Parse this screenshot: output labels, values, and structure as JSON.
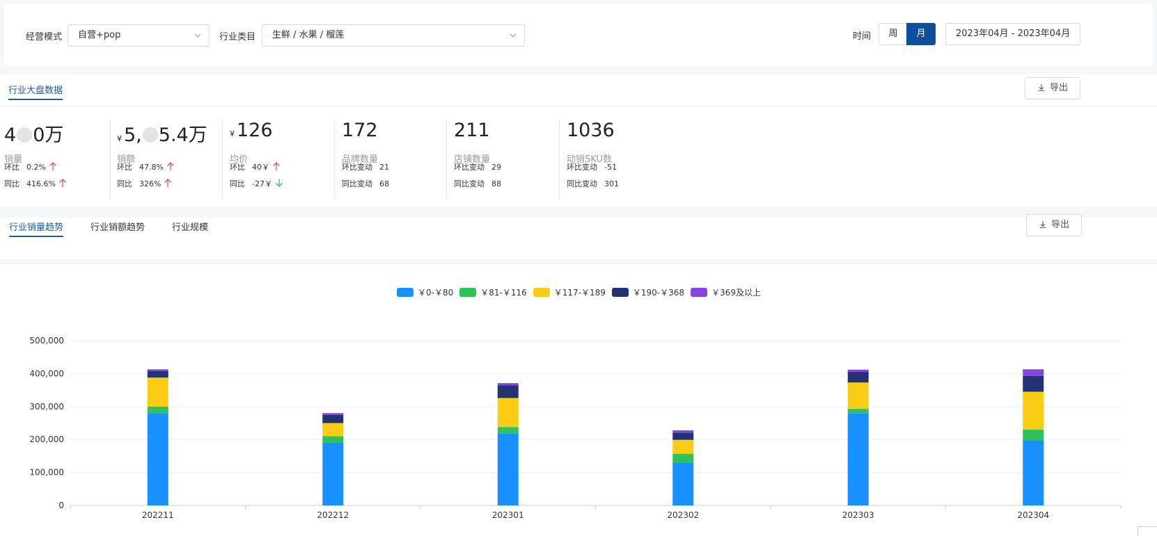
{
  "filters": {
    "mode_label": "经营模式",
    "mode_value": "自营+pop",
    "category_label": "行业类目",
    "category_value": "生鲜 / 水果 / 榴莲",
    "time_label": "时间",
    "week_label": "周",
    "month_label": "月",
    "date_range": "2023年04月 - 2023年04月"
  },
  "overview": {
    "tab_label": "行业大盘数据",
    "export_label": "导出",
    "metrics": [
      {
        "value_prefix": "4",
        "value_suffix": "0万",
        "name": "销量",
        "row1_label": "环比",
        "row1_value": "0.2%",
        "row2_label": "同比",
        "row2_value": "416.6%"
      },
      {
        "currency": "¥",
        "value_prefix": "5,",
        "value_suffix": "5.4万",
        "name": "销额",
        "row1_label": "环比",
        "row1_value": "47.8%",
        "row2_label": "同比",
        "row2_value": "326%"
      },
      {
        "currency": "¥",
        "value": "126",
        "name": "均价",
        "row1_label": "环比",
        "row1_value": "40￥",
        "row2_label": "同比",
        "row2_value": "-27￥"
      },
      {
        "value": "172",
        "name": "品牌数量",
        "row1_label": "环比变动",
        "row1_value": "21",
        "row2_label": "同比变动",
        "row2_value": "68"
      },
      {
        "value": "211",
        "name": "店铺数量",
        "row1_label": "环比变动",
        "row1_value": "29",
        "row2_label": "同比变动",
        "row2_value": "88"
      },
      {
        "value": "1036",
        "name": "动销SKU数",
        "row1_label": "环比变动",
        "row1_value": "-51",
        "row2_label": "同比变动",
        "row2_value": "301"
      }
    ]
  },
  "trend": {
    "tabs": [
      "行业销量趋势",
      "行业销额趋势",
      "行业规模"
    ],
    "export_label": "导出"
  },
  "colors": {
    "primary": "#0e4f9c",
    "up": "#f04864",
    "down": "#2fc25b"
  },
  "chart_data": {
    "type": "bar",
    "stacked": true,
    "categories": [
      "202211",
      "202212",
      "202301",
      "202302",
      "202303",
      "202304"
    ],
    "ylim": [
      0,
      500000
    ],
    "yticks": [
      "0",
      "100,000",
      "200,000",
      "300,000",
      "400,000",
      "500,000"
    ],
    "yticks_values": [
      0,
      100000,
      200000,
      300000,
      400000,
      500000
    ],
    "series": [
      {
        "name": "￥0-￥80",
        "color": "#1890ff",
        "values": [
          280000,
          190000,
          218000,
          130000,
          280000,
          198000
        ]
      },
      {
        "name": "￥81-￥116",
        "color": "#2fc25b",
        "values": [
          20000,
          20000,
          20000,
          27000,
          13000,
          32000
        ]
      },
      {
        "name": "￥117-￥189",
        "color": "#facc14",
        "values": [
          88000,
          40000,
          88000,
          42000,
          80000,
          115000
        ]
      },
      {
        "name": "￥190-￥368",
        "color": "#223273",
        "values": [
          20000,
          25000,
          38000,
          22000,
          32000,
          48000
        ]
      },
      {
        "name": "￥369及以上",
        "color": "#8543e0",
        "values": [
          5000,
          5000,
          7000,
          7000,
          7000,
          20000
        ]
      }
    ]
  }
}
